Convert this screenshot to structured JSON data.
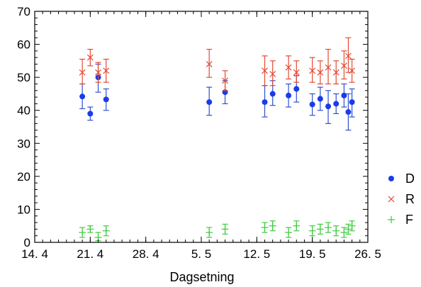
{
  "chart_data": {
    "type": "scatter",
    "title": "",
    "xlabel": "Dagsetning",
    "ylabel": "",
    "x_tick_labels": [
      "14. 4",
      "21. 4",
      "28. 4",
      "5. 5",
      "12. 5",
      "19. 5",
      "26. 5"
    ],
    "x_ticks": [
      "2014-04-14",
      "2014-04-21",
      "2014-04-28",
      "2014-05-05",
      "2014-05-12",
      "2014-05-19",
      "2014-05-26"
    ],
    "xlim": [
      "2014-04-14",
      "2014-05-26"
    ],
    "y_tick_labels": [
      "0",
      "10",
      "20",
      "30",
      "40",
      "50",
      "60",
      "70"
    ],
    "y_ticks": [
      0,
      10,
      20,
      30,
      40,
      50,
      60,
      70
    ],
    "ylim": [
      0,
      70
    ],
    "grid": false,
    "legend": "right",
    "series": [
      {
        "name": "D",
        "marker": "circle",
        "color": "#1a3ce8",
        "error_color": "#3050d0",
        "points": [
          {
            "x": "2014-04-20",
            "y": 44.2,
            "lo": 40.5,
            "hi": 48.0
          },
          {
            "x": "2014-04-21",
            "y": 39.0,
            "lo": 37.0,
            "hi": 41.0
          },
          {
            "x": "2014-04-22",
            "y": 50.0,
            "lo": 45.5,
            "hi": 54.0
          },
          {
            "x": "2014-04-23",
            "y": 43.3,
            "lo": 40.0,
            "hi": 46.5
          },
          {
            "x": "2014-05-06",
            "y": 42.5,
            "lo": 38.5,
            "hi": 47.0
          },
          {
            "x": "2014-05-08",
            "y": 45.5,
            "lo": 42.0,
            "hi": 49.0
          },
          {
            "x": "2014-05-13",
            "y": 42.5,
            "lo": 38.0,
            "hi": 47.5
          },
          {
            "x": "2014-05-14",
            "y": 45.0,
            "lo": 41.5,
            "hi": 49.0
          },
          {
            "x": "2014-05-16",
            "y": 44.5,
            "lo": 41.0,
            "hi": 48.0
          },
          {
            "x": "2014-05-17",
            "y": 46.5,
            "lo": 42.5,
            "hi": 50.5
          },
          {
            "x": "2014-05-19",
            "y": 41.8,
            "lo": 38.5,
            "hi": 45.0
          },
          {
            "x": "2014-05-20",
            "y": 43.5,
            "lo": 40.0,
            "hi": 47.0
          },
          {
            "x": "2014-05-21",
            "y": 41.2,
            "lo": 36.0,
            "hi": 46.0
          },
          {
            "x": "2014-05-22",
            "y": 42.0,
            "lo": 39.0,
            "hi": 45.0
          },
          {
            "x": "2014-05-23",
            "y": 44.5,
            "lo": 41.0,
            "hi": 48.0
          },
          {
            "x": "2014-05-23",
            "y": 39.5,
            "lo": 34.0,
            "hi": 45.0
          },
          {
            "x": "2014-05-24",
            "y": 42.5,
            "lo": 38.0,
            "hi": 46.5
          }
        ]
      },
      {
        "name": "R",
        "marker": "x",
        "color": "#e24a33",
        "error_color": "#e24a33",
        "points": [
          {
            "x": "2014-04-20",
            "y": 51.5,
            "lo": 48.0,
            "hi": 55.5
          },
          {
            "x": "2014-04-21",
            "y": 56.0,
            "lo": 53.5,
            "hi": 58.5
          },
          {
            "x": "2014-04-22",
            "y": 51.5,
            "lo": 48.5,
            "hi": 54.5
          },
          {
            "x": "2014-04-23",
            "y": 52.0,
            "lo": 48.5,
            "hi": 55.5
          },
          {
            "x": "2014-05-06",
            "y": 54.0,
            "lo": 50.0,
            "hi": 58.5
          },
          {
            "x": "2014-05-08",
            "y": 49.0,
            "lo": 46.0,
            "hi": 52.0
          },
          {
            "x": "2014-05-13",
            "y": 52.0,
            "lo": 47.5,
            "hi": 56.5
          },
          {
            "x": "2014-05-14",
            "y": 51.0,
            "lo": 47.5,
            "hi": 55.0
          },
          {
            "x": "2014-05-16",
            "y": 53.0,
            "lo": 49.5,
            "hi": 56.5
          },
          {
            "x": "2014-05-17",
            "y": 51.5,
            "lo": 48.5,
            "hi": 55.0
          },
          {
            "x": "2014-05-19",
            "y": 52.0,
            "lo": 48.5,
            "hi": 56.0
          },
          {
            "x": "2014-05-20",
            "y": 51.5,
            "lo": 48.0,
            "hi": 55.0
          },
          {
            "x": "2014-05-21",
            "y": 53.0,
            "lo": 48.0,
            "hi": 58.5
          },
          {
            "x": "2014-05-22",
            "y": 51.5,
            "lo": 48.0,
            "hi": 55.0
          },
          {
            "x": "2014-05-23",
            "y": 53.5,
            "lo": 49.5,
            "hi": 58.0
          },
          {
            "x": "2014-05-23",
            "y": 56.5,
            "lo": 51.5,
            "hi": 62.0
          },
          {
            "x": "2014-05-24",
            "y": 52.0,
            "lo": 48.5,
            "hi": 55.5
          }
        ]
      },
      {
        "name": "F",
        "marker": "plus",
        "color": "#3ec93e",
        "error_color": "#3ec93e",
        "points": [
          {
            "x": "2014-04-20",
            "y": 3.0,
            "lo": 1.5,
            "hi": 4.5
          },
          {
            "x": "2014-04-21",
            "y": 4.0,
            "lo": 3.0,
            "hi": 5.0
          },
          {
            "x": "2014-04-22",
            "y": 1.5,
            "lo": 0.5,
            "hi": 3.0
          },
          {
            "x": "2014-04-23",
            "y": 3.5,
            "lo": 2.0,
            "hi": 5.0
          },
          {
            "x": "2014-05-06",
            "y": 3.0,
            "lo": 1.5,
            "hi": 4.5
          },
          {
            "x": "2014-05-08",
            "y": 4.0,
            "lo": 2.5,
            "hi": 5.5
          },
          {
            "x": "2014-05-13",
            "y": 4.5,
            "lo": 3.0,
            "hi": 6.0
          },
          {
            "x": "2014-05-14",
            "y": 5.0,
            "lo": 3.5,
            "hi": 6.5
          },
          {
            "x": "2014-05-16",
            "y": 3.0,
            "lo": 1.5,
            "hi": 4.5
          },
          {
            "x": "2014-05-17",
            "y": 5.0,
            "lo": 3.5,
            "hi": 6.5
          },
          {
            "x": "2014-05-19",
            "y": 3.5,
            "lo": 2.0,
            "hi": 5.0
          },
          {
            "x": "2014-05-20",
            "y": 4.0,
            "lo": 2.5,
            "hi": 5.5
          },
          {
            "x": "2014-05-21",
            "y": 4.5,
            "lo": 3.0,
            "hi": 6.0
          },
          {
            "x": "2014-05-22",
            "y": 3.5,
            "lo": 2.0,
            "hi": 5.0
          },
          {
            "x": "2014-05-23",
            "y": 3.0,
            "lo": 1.5,
            "hi": 4.5
          },
          {
            "x": "2014-05-23",
            "y": 4.0,
            "lo": 2.5,
            "hi": 5.5
          },
          {
            "x": "2014-05-24",
            "y": 5.0,
            "lo": 3.5,
            "hi": 6.5
          }
        ]
      }
    ]
  }
}
